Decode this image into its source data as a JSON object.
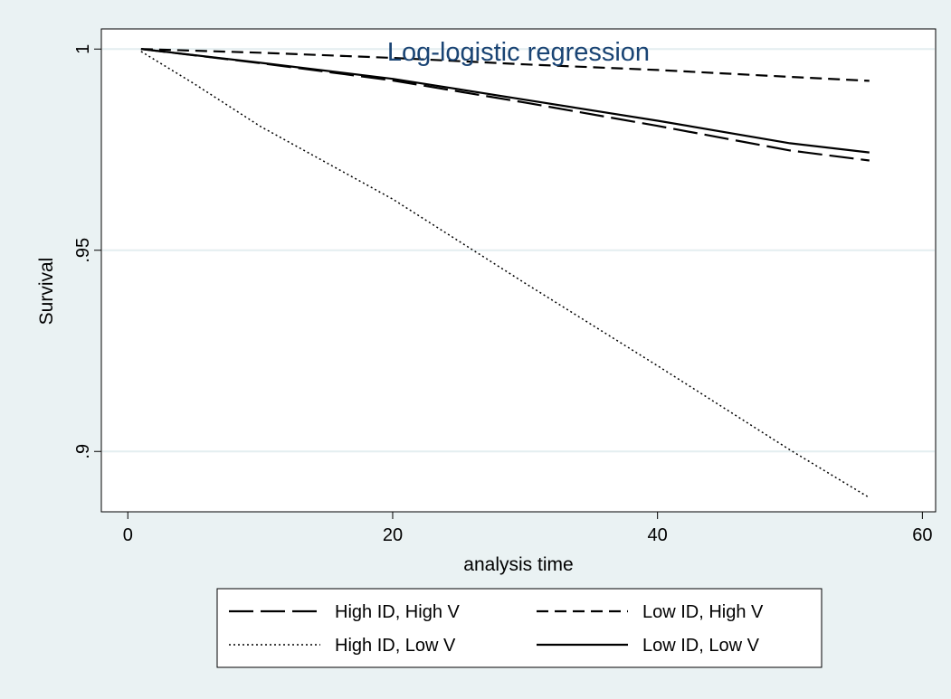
{
  "chart_data": {
    "type": "line",
    "title": "Log-logistic regression",
    "xlabel": "analysis time",
    "ylabel": "Survival",
    "xlim": [
      -2,
      61
    ],
    "ylim": [
      0.885,
      1.005
    ],
    "x_ticks": [
      0,
      20,
      40,
      60
    ],
    "x_tick_labels": [
      "0",
      "20",
      "40",
      "60"
    ],
    "y_ticks": [
      0.9,
      0.95,
      1
    ],
    "y_tick_labels": [
      ".9",
      ".95",
      "1"
    ],
    "grid": true,
    "legend_position": "bottom",
    "series": [
      {
        "name": "High ID, High V",
        "style": "longdash",
        "x": [
          1,
          10,
          20,
          30,
          40,
          50,
          56
        ],
        "y": [
          1.0,
          0.9965,
          0.9922,
          0.9867,
          0.9809,
          0.9748,
          0.9723
        ]
      },
      {
        "name": "Low ID, High V",
        "style": "dash",
        "x": [
          1,
          10,
          20,
          30,
          40,
          50,
          56
        ],
        "y": [
          1.0,
          0.9991,
          0.9978,
          0.9962,
          0.9948,
          0.9931,
          0.9921
        ]
      },
      {
        "name": "High ID, Low V",
        "style": "dot",
        "x": [
          1,
          5,
          10,
          20,
          30,
          40,
          50,
          56
        ],
        "y": [
          0.9994,
          0.9914,
          0.9808,
          0.9627,
          0.9418,
          0.9213,
          0.9004,
          0.8885
        ]
      },
      {
        "name": "Low ID, Low V",
        "style": "solid",
        "x": [
          1,
          10,
          20,
          30,
          40,
          50,
          56
        ],
        "y": [
          1.0,
          0.9966,
          0.9926,
          0.9874,
          0.9822,
          0.9766,
          0.9743
        ]
      }
    ]
  },
  "colors": {
    "background": "#eaf2f3",
    "plot_area": "#ffffff",
    "grid": "#e4eef0",
    "title": "#1a4474",
    "lines": "#000000"
  }
}
